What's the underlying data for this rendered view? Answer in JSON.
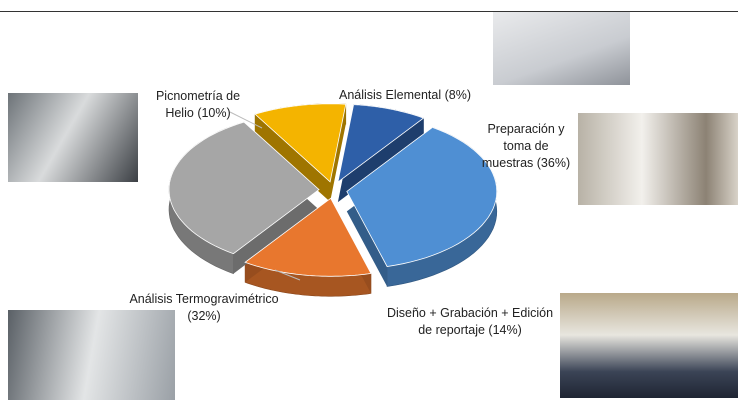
{
  "chart_data": {
    "type": "pie3d",
    "categories": [
      "Análisis Elemental",
      "Preparación y toma de muestras",
      "Diseño + Grabación + Edición de reportaje",
      "Análisis Termogravimétrico",
      "Picnometría de Helio"
    ],
    "values": [
      8,
      36,
      14,
      32,
      10
    ],
    "value_labels": [
      "(8%)",
      "(36%)",
      "(14%)",
      "(32%)",
      "(10%)"
    ],
    "colors": [
      "#2e5fa8",
      "#4f8fd3",
      "#e8772e",
      "#a6a6a6",
      "#f4b400"
    ]
  }
}
